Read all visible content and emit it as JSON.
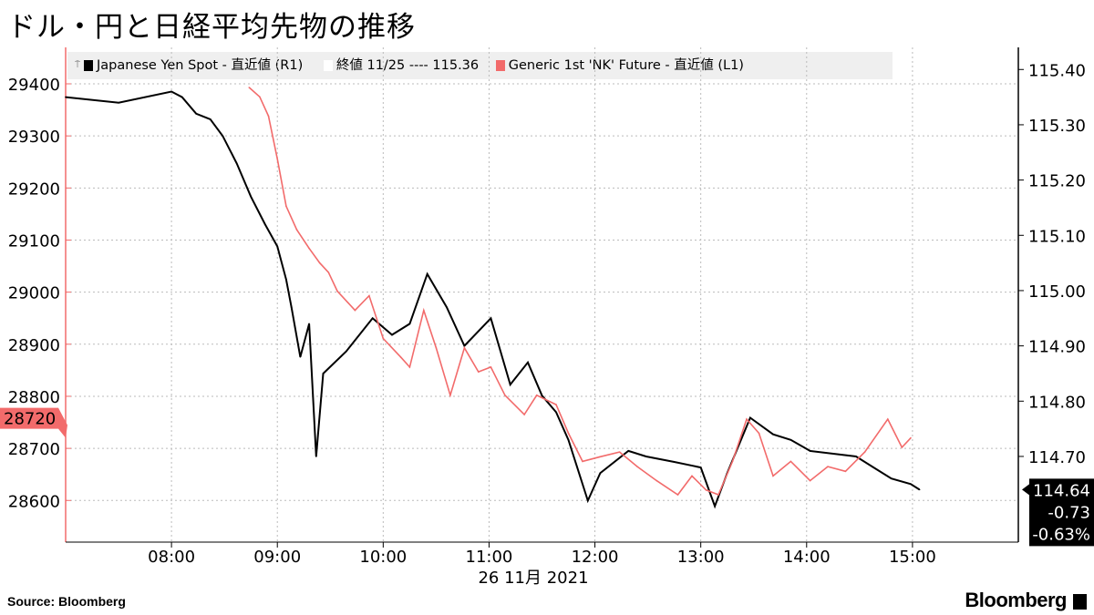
{
  "title": "ドル・円と日経平均先物の推移",
  "source": "Source:  Bloomberg",
  "brand": "Bloomberg",
  "legend": {
    "yen_label": "Japanese Yen Spot - 直近値 (R1)",
    "close_label": "終値 11/25 ---- 115.36",
    "nk_label": "Generic 1st 'NK' Future - 直近値 (L1)"
  },
  "colors": {
    "yen": "#000000",
    "nk": "#f26b6b",
    "grid": "#bbbbbb",
    "legend_bg": "#efefef"
  },
  "chart_data": {
    "type": "line",
    "xlabel": "26 11月 2021",
    "x_ticks": [
      "08:00",
      "09:00",
      "10:00",
      "11:00",
      "12:00",
      "13:00",
      "14:00",
      "15:00"
    ],
    "x_range": [
      "07:00",
      "16:00"
    ],
    "left_axis": {
      "ticks": [
        28600,
        28700,
        28800,
        28900,
        29000,
        29100,
        29200,
        29300,
        29400
      ],
      "range": [
        28520,
        29470
      ],
      "last_tag": "28720"
    },
    "right_axis": {
      "ticks": [
        "114.70",
        "114.80",
        "114.90",
        "115.00",
        "115.10",
        "115.20",
        "115.30",
        "115.40"
      ],
      "range": [
        114.545,
        115.44
      ],
      "last_tag": [
        "114.64",
        "-0.73",
        "-0.63%"
      ]
    },
    "grid": true,
    "legend_placement": "top",
    "series": [
      {
        "name": "Japanese Yen Spot - 直近値 (R1)",
        "axis": "right",
        "color": "#000000",
        "x": [
          "07:00",
          "07:30",
          "08:00",
          "08:06",
          "08:14",
          "08:22",
          "08:29",
          "08:37",
          "08:45",
          "08:53",
          "09:00",
          "09:05",
          "09:08",
          "09:13",
          "09:18",
          "09:22",
          "09:26",
          "09:39",
          "09:54",
          "10:05",
          "10:15",
          "10:25",
          "10:36",
          "10:46",
          "11:01",
          "11:12",
          "11:22",
          "11:30",
          "11:38",
          "11:45",
          "11:56",
          "12:03",
          "12:19",
          "12:29",
          "12:45",
          "13:00",
          "13:08",
          "13:15",
          "13:28",
          "13:41",
          "13:51",
          "14:02",
          "14:28",
          "14:38",
          "14:48",
          "14:59",
          "15:04"
        ],
        "y": [
          115.35,
          115.34,
          115.36,
          115.35,
          115.32,
          115.31,
          115.28,
          115.23,
          115.17,
          115.12,
          115.08,
          115.02,
          114.97,
          114.88,
          114.94,
          114.7,
          114.85,
          114.89,
          114.95,
          114.92,
          114.94,
          115.03,
          114.97,
          114.9,
          114.95,
          114.83,
          114.87,
          114.81,
          114.78,
          114.73,
          114.62,
          114.67,
          114.71,
          114.7,
          114.69,
          114.68,
          114.61,
          114.67,
          114.77,
          114.74,
          114.73,
          114.71,
          114.7,
          114.68,
          114.66,
          114.65,
          114.64
        ]
      },
      {
        "name": "Generic 1st 'NK' Future - 直近値 (L1)",
        "axis": "left",
        "color": "#f26b6b",
        "x": [
          "08:44",
          "08:50",
          "08:55",
          "09:00",
          "09:05",
          "09:11",
          "09:18",
          "09:24",
          "09:29",
          "09:34",
          "09:44",
          "09:52",
          "10:00",
          "10:10",
          "10:15",
          "10:23",
          "10:30",
          "10:38",
          "10:46",
          "10:54",
          "11:01",
          "11:09",
          "11:20",
          "11:27",
          "11:38",
          "11:45",
          "11:53",
          "12:03",
          "12:14",
          "12:24",
          "12:35",
          "12:47",
          "12:55",
          "13:03",
          "13:10",
          "13:18",
          "13:26",
          "13:33",
          "13:41",
          "13:51",
          "14:02",
          "14:12",
          "14:22",
          "14:33",
          "14:46",
          "14:54",
          "14:59"
        ],
        "y": [
          29393,
          29375,
          29338,
          29256,
          29165,
          29120,
          29084,
          29056,
          29038,
          29002,
          28965,
          28993,
          28911,
          28875,
          28856,
          28965,
          28893,
          28802,
          28893,
          28847,
          28856,
          28802,
          28765,
          28802,
          28784,
          28729,
          28675,
          28684,
          28693,
          28665,
          28638,
          28611,
          28647,
          28620,
          28611,
          28675,
          28756,
          28729,
          28647,
          28675,
          28638,
          28665,
          28656,
          28693,
          28756,
          28702,
          28720
        ]
      }
    ]
  }
}
